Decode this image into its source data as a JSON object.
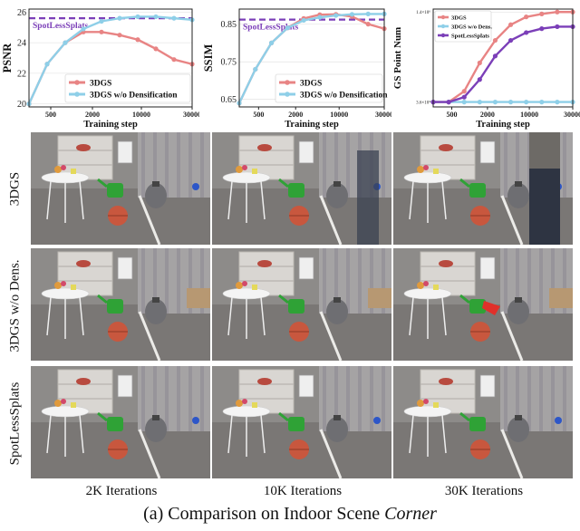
{
  "chart_data": [
    {
      "type": "line",
      "xlabel": "Training step",
      "ylabel": "PSNR",
      "x_ticks": [
        "500",
        "2000",
        "10000",
        "30000"
      ],
      "y_ticks": [
        "20",
        "22",
        "24",
        "26"
      ],
      "ylim": [
        19.8,
        26.2
      ],
      "reference": {
        "label": "SpotLessSplats",
        "value": 25.6,
        "color": "#7b3fb8"
      },
      "legend": "bottom-right",
      "series": [
        {
          "name": "3DGS",
          "color": "#e88484",
          "x": [
            0,
            1,
            2,
            3,
            4,
            5,
            6,
            7,
            8,
            9
          ],
          "y": [
            20.0,
            22.6,
            24.0,
            24.7,
            24.7,
            24.5,
            24.2,
            23.6,
            22.9,
            22.6
          ]
        },
        {
          "name": "3DGS w/o Densification",
          "color": "#8ecfe8",
          "x": [
            0,
            1,
            2,
            3,
            4,
            5,
            6,
            7,
            8,
            9
          ],
          "y": [
            20.0,
            22.6,
            24.0,
            24.9,
            25.4,
            25.6,
            25.7,
            25.7,
            25.6,
            25.5
          ]
        }
      ]
    },
    {
      "type": "line",
      "xlabel": "Training step",
      "ylabel": "SSIM",
      "x_ticks": [
        "500",
        "2000",
        "10000",
        "30000"
      ],
      "y_ticks": [
        "0.65",
        "0.75",
        "0.85"
      ],
      "ylim": [
        0.63,
        0.89
      ],
      "reference": {
        "label": "SpotLessSplats",
        "value": 0.862,
        "color": "#7b3fb8"
      },
      "legend": "bottom-right",
      "series": [
        {
          "name": "3DGS",
          "color": "#e88484",
          "x": [
            0,
            1,
            2,
            3,
            4,
            5,
            6,
            7,
            8,
            9
          ],
          "y": [
            0.64,
            0.73,
            0.8,
            0.84,
            0.865,
            0.875,
            0.876,
            0.87,
            0.85,
            0.838
          ]
        },
        {
          "name": "3DGS w/o Densification",
          "color": "#8ecfe8",
          "x": [
            0,
            1,
            2,
            3,
            4,
            5,
            6,
            7,
            8,
            9
          ],
          "y": [
            0.64,
            0.73,
            0.8,
            0.84,
            0.86,
            0.868,
            0.873,
            0.876,
            0.877,
            0.877
          ]
        }
      ]
    },
    {
      "type": "line",
      "xlabel": "Training step",
      "ylabel": "GS Point Num",
      "x_ticks": [
        "500",
        "2000",
        "10000",
        "30000"
      ],
      "y_ticks": [
        "3.6×10⁴",
        "1.4×10⁶"
      ],
      "ylim": [
        0,
        1
      ],
      "legend": "top-left",
      "series": [
        {
          "name": "3DGS",
          "color": "#e88484",
          "x": [
            0,
            1,
            2,
            3,
            4,
            5,
            6,
            7,
            8,
            9
          ],
          "y": [
            0.05,
            0.05,
            0.16,
            0.45,
            0.68,
            0.84,
            0.92,
            0.95,
            0.97,
            0.97
          ]
        },
        {
          "name": "3DGS w/o Dens.",
          "color": "#8ecfe8",
          "x": [
            0,
            1,
            2,
            3,
            4,
            5,
            6,
            7,
            8,
            9
          ],
          "y": [
            0.05,
            0.05,
            0.05,
            0.05,
            0.05,
            0.05,
            0.05,
            0.05,
            0.05,
            0.05
          ]
        },
        {
          "name": "SpotLessSplats",
          "color": "#7b3fb8",
          "x": [
            0,
            1,
            2,
            3,
            4,
            5,
            6,
            7,
            8,
            9
          ],
          "y": [
            0.05,
            0.05,
            0.1,
            0.28,
            0.52,
            0.68,
            0.76,
            0.8,
            0.82,
            0.82
          ]
        }
      ]
    }
  ],
  "rows": [
    "3DGS",
    "3DGS  w/o Dens.",
    "SpotLessSplats"
  ],
  "columns": [
    "2K Iterations",
    "10K Iterations",
    "30K Iterations"
  ],
  "caption": {
    "prefix": "(a) Comparison on Indoor Scene ",
    "scene": "Corner"
  }
}
